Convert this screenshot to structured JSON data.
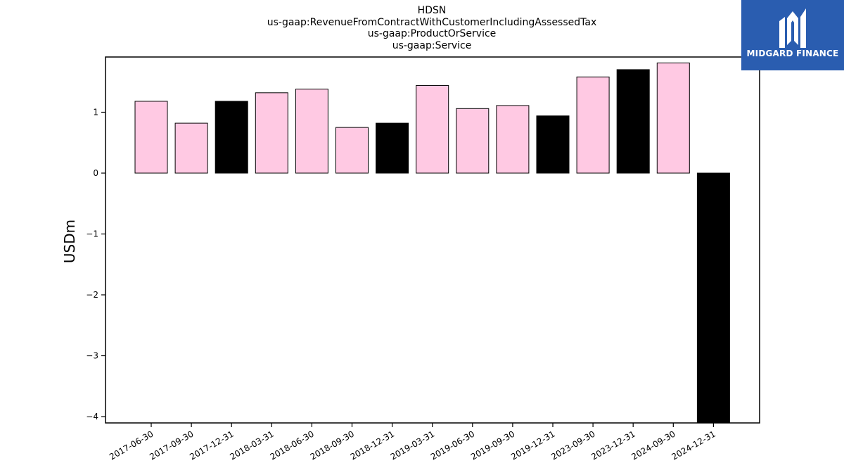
{
  "title_lines": [
    "HDSN",
    "us-gaap:RevenueFromContractWithCustomerIncludingAssessedTax",
    "us-gaap:ProductOrService",
    "us-gaap:Service"
  ],
  "logo": {
    "text": "MIDGARD FINANCE",
    "bg_color": "#2a5db0",
    "icon": "midgard-m-mark-icon"
  },
  "colors": {
    "pink": "#ffc9e3",
    "black": "#000000"
  },
  "chart_data": {
    "type": "bar",
    "ylabel": "USDm",
    "xlabel": "",
    "ylim": [
      -4.1,
      1.9
    ],
    "yticks": [
      1,
      0,
      -1,
      -2,
      -3,
      -4
    ],
    "ytick_labels": [
      "1",
      "0",
      "−1",
      "−2",
      "−3",
      "−4"
    ],
    "grid": false,
    "categories": [
      "2017-06-30",
      "2017-09-30",
      "2017-12-31",
      "2018-03-31",
      "2018-06-30",
      "2018-09-30",
      "2018-12-31",
      "2019-03-31",
      "2019-06-30",
      "2019-09-30",
      "2019-12-31",
      "2023-09-30",
      "2023-12-31",
      "2024-09-30",
      "2024-12-31"
    ],
    "values": [
      1.18,
      0.82,
      1.18,
      1.32,
      1.38,
      0.75,
      0.82,
      1.44,
      1.06,
      1.11,
      0.94,
      1.58,
      1.7,
      1.81,
      -4.1
    ],
    "bar_colors": [
      "pink",
      "pink",
      "black",
      "pink",
      "pink",
      "pink",
      "black",
      "pink",
      "pink",
      "pink",
      "black",
      "pink",
      "black",
      "pink",
      "black"
    ]
  }
}
